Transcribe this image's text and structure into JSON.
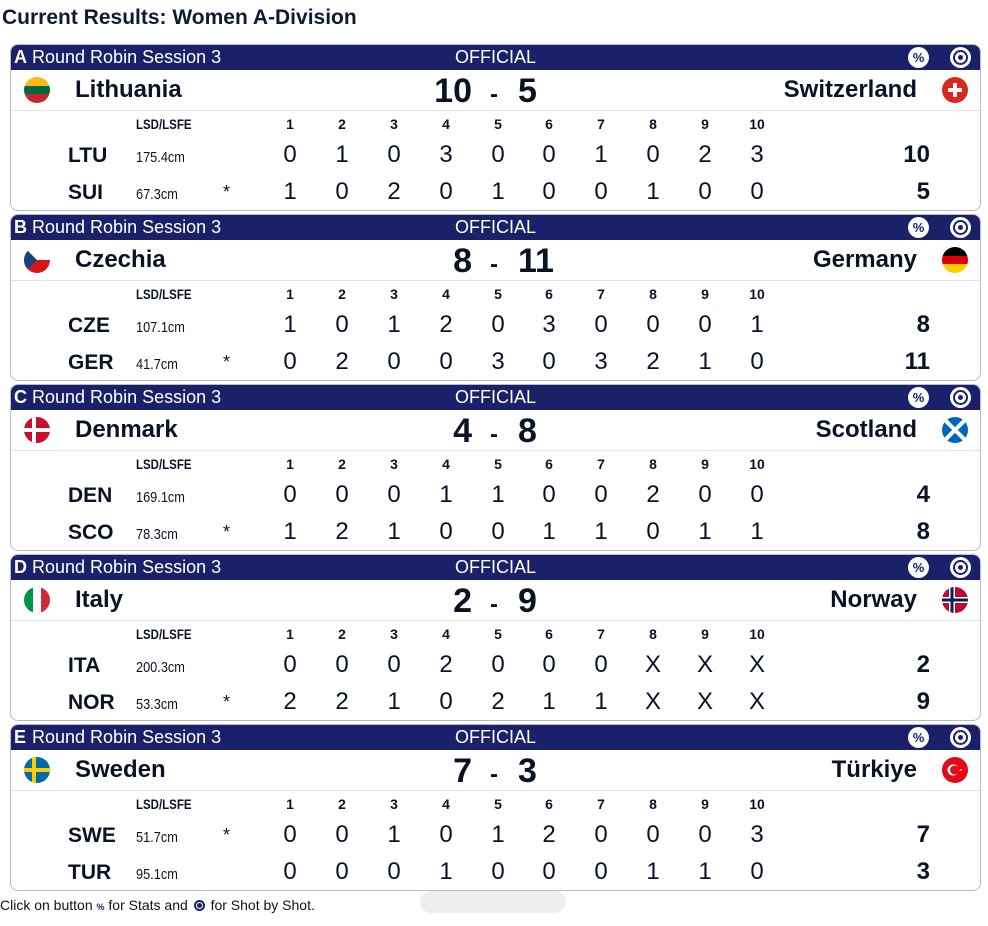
{
  "page_title": "Current Results: Women A-Division",
  "header_labels": {
    "lsd": "LSD/LSFE",
    "ends": [
      "1",
      "2",
      "3",
      "4",
      "5",
      "6",
      "7",
      "8",
      "9",
      "10"
    ]
  },
  "games": [
    {
      "sheet": "A",
      "session": "Round Robin Session 3",
      "status": "OFFICIAL",
      "stats_icon": "%",
      "shot_icon": "target-icon",
      "team1": {
        "name": "Lithuania",
        "abbr": "LTU",
        "lsd": "175.4cm",
        "hammer": "",
        "score": "10",
        "ends": [
          "0",
          "1",
          "0",
          "3",
          "0",
          "0",
          "1",
          "0",
          "2",
          "3"
        ],
        "flag": "lithuania"
      },
      "team2": {
        "name": "Switzerland",
        "abbr": "SUI",
        "lsd": "67.3cm",
        "hammer": "*",
        "score": "5",
        "ends": [
          "1",
          "0",
          "2",
          "0",
          "1",
          "0",
          "0",
          "1",
          "0",
          "0"
        ],
        "flag": "switzerland"
      },
      "dash": "-"
    },
    {
      "sheet": "B",
      "session": "Round Robin Session 3",
      "status": "OFFICIAL",
      "stats_icon": "%",
      "shot_icon": "target-icon",
      "team1": {
        "name": "Czechia",
        "abbr": "CZE",
        "lsd": "107.1cm",
        "hammer": "",
        "score": "8",
        "ends": [
          "1",
          "0",
          "1",
          "2",
          "0",
          "3",
          "0",
          "0",
          "0",
          "1"
        ],
        "flag": "czechia"
      },
      "team2": {
        "name": "Germany",
        "abbr": "GER",
        "lsd": "41.7cm",
        "hammer": "*",
        "score": "11",
        "ends": [
          "0",
          "2",
          "0",
          "0",
          "3",
          "0",
          "3",
          "2",
          "1",
          "0"
        ],
        "flag": "germany"
      },
      "dash": "-"
    },
    {
      "sheet": "C",
      "session": "Round Robin Session 3",
      "status": "OFFICIAL",
      "stats_icon": "%",
      "shot_icon": "target-icon",
      "team1": {
        "name": "Denmark",
        "abbr": "DEN",
        "lsd": "169.1cm",
        "hammer": "",
        "score": "4",
        "ends": [
          "0",
          "0",
          "0",
          "1",
          "1",
          "0",
          "0",
          "2",
          "0",
          "0"
        ],
        "flag": "denmark"
      },
      "team2": {
        "name": "Scotland",
        "abbr": "SCO",
        "lsd": "78.3cm",
        "hammer": "*",
        "score": "8",
        "ends": [
          "1",
          "2",
          "1",
          "0",
          "0",
          "1",
          "1",
          "0",
          "1",
          "1"
        ],
        "flag": "scotland"
      },
      "dash": "-"
    },
    {
      "sheet": "D",
      "session": "Round Robin Session 3",
      "status": "OFFICIAL",
      "stats_icon": "%",
      "shot_icon": "target-icon",
      "team1": {
        "name": "Italy",
        "abbr": "ITA",
        "lsd": "200.3cm",
        "hammer": "",
        "score": "2",
        "ends": [
          "0",
          "0",
          "0",
          "2",
          "0",
          "0",
          "0",
          "X",
          "X",
          "X"
        ],
        "flag": "italy"
      },
      "team2": {
        "name": "Norway",
        "abbr": "NOR",
        "lsd": "53.3cm",
        "hammer": "*",
        "score": "9",
        "ends": [
          "2",
          "2",
          "1",
          "0",
          "2",
          "1",
          "1",
          "X",
          "X",
          "X"
        ],
        "flag": "norway"
      },
      "dash": "-"
    },
    {
      "sheet": "E",
      "session": "Round Robin Session 3",
      "status": "OFFICIAL",
      "stats_icon": "%",
      "shot_icon": "target-icon",
      "team1": {
        "name": "Sweden",
        "abbr": "SWE",
        "lsd": "51.7cm",
        "hammer": "*",
        "score": "7",
        "ends": [
          "0",
          "0",
          "1",
          "0",
          "1",
          "2",
          "0",
          "0",
          "0",
          "3"
        ],
        "flag": "sweden"
      },
      "team2": {
        "name": "Türkiye",
        "abbr": "TUR",
        "lsd": "95.1cm",
        "hammer": "",
        "score": "3",
        "ends": [
          "0",
          "0",
          "0",
          "1",
          "0",
          "0",
          "0",
          "1",
          "1",
          "0"
        ],
        "flag": "turkiye"
      },
      "dash": "-"
    }
  ],
  "footer": {
    "part1": "Click on button ",
    "pct": "%",
    "part2": " for Stats and ",
    "part3": " for Shot by Shot."
  }
}
